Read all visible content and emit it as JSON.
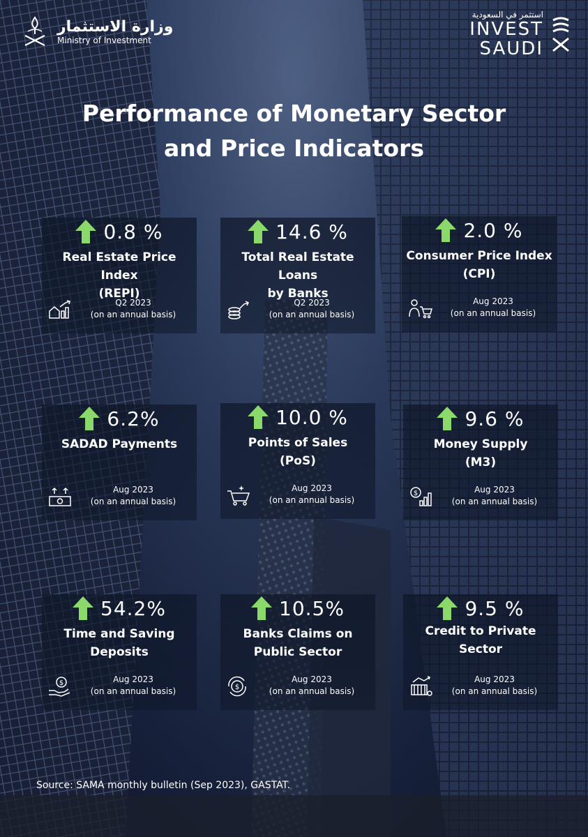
{
  "header": {
    "ministry_ar": "وزارة الاستثمار",
    "ministry_en": "Ministry of Investment",
    "invest_ar": "استثمر في السعودية",
    "invest_line1": "INVEST",
    "invest_line2": "SAUDI"
  },
  "title": {
    "line1": "Performance of Monetary Sector",
    "line2": "and Price Indicators"
  },
  "cards": [
    {
      "value": "0.8 %",
      "label1": "Real Estate Price Index",
      "label2": "(REPI)",
      "period": "Q2 2023",
      "basis": "(on an annual basis)",
      "icon": "house-chart-icon"
    },
    {
      "value": "14.6 %",
      "label1": "Total Real Estate Loans",
      "label2": "by Banks",
      "period": "Q2 2023",
      "basis": "(on an annual basis)",
      "icon": "coins-growth-icon"
    },
    {
      "value": "2.0 %",
      "label1": "Consumer Price Index",
      "label2": "(CPI)",
      "period": "Aug 2023",
      "basis": "(on an annual basis)",
      "icon": "consumer-cart-icon"
    },
    {
      "value": "6.2%",
      "label1": "SADAD Payments",
      "label2": "",
      "period": "Aug 2023",
      "basis": "(on an annual basis)",
      "icon": "cash-payment-icon"
    },
    {
      "value": "10.0 %",
      "label1": "Points of Sales",
      "label2": "(PoS)",
      "period": "Aug 2023",
      "basis": "(on an annual basis)",
      "icon": "shopping-cart-icon"
    },
    {
      "value": "9.6 %",
      "label1": "Money Supply",
      "label2": "(M3)",
      "period": "Aug 2023",
      "basis": "(on an annual basis)",
      "icon": "dollar-chart-icon"
    },
    {
      "value": "54.2%",
      "label1": "Time and Saving",
      "label2": "Deposits",
      "period": "Aug 2023",
      "basis": "(on an annual basis)",
      "icon": "hand-coin-icon"
    },
    {
      "value": "10.5%",
      "label1": "Banks Claims on",
      "label2": "Public Sector",
      "period": "Aug 2023",
      "basis": "(on an annual basis)",
      "icon": "coin-cycle-icon"
    },
    {
      "value": "9.5 %",
      "label1": "Credit to Private",
      "label2": "Sector",
      "period": "Aug 2023",
      "basis": "(on an annual basis)",
      "icon": "bank-chart-icon"
    }
  ],
  "source": "Source: SAMA monthly bulletin (Sep 2023), GASTAT.",
  "colors": {
    "arrow": "#8bd96a",
    "text": "#ffffff"
  }
}
